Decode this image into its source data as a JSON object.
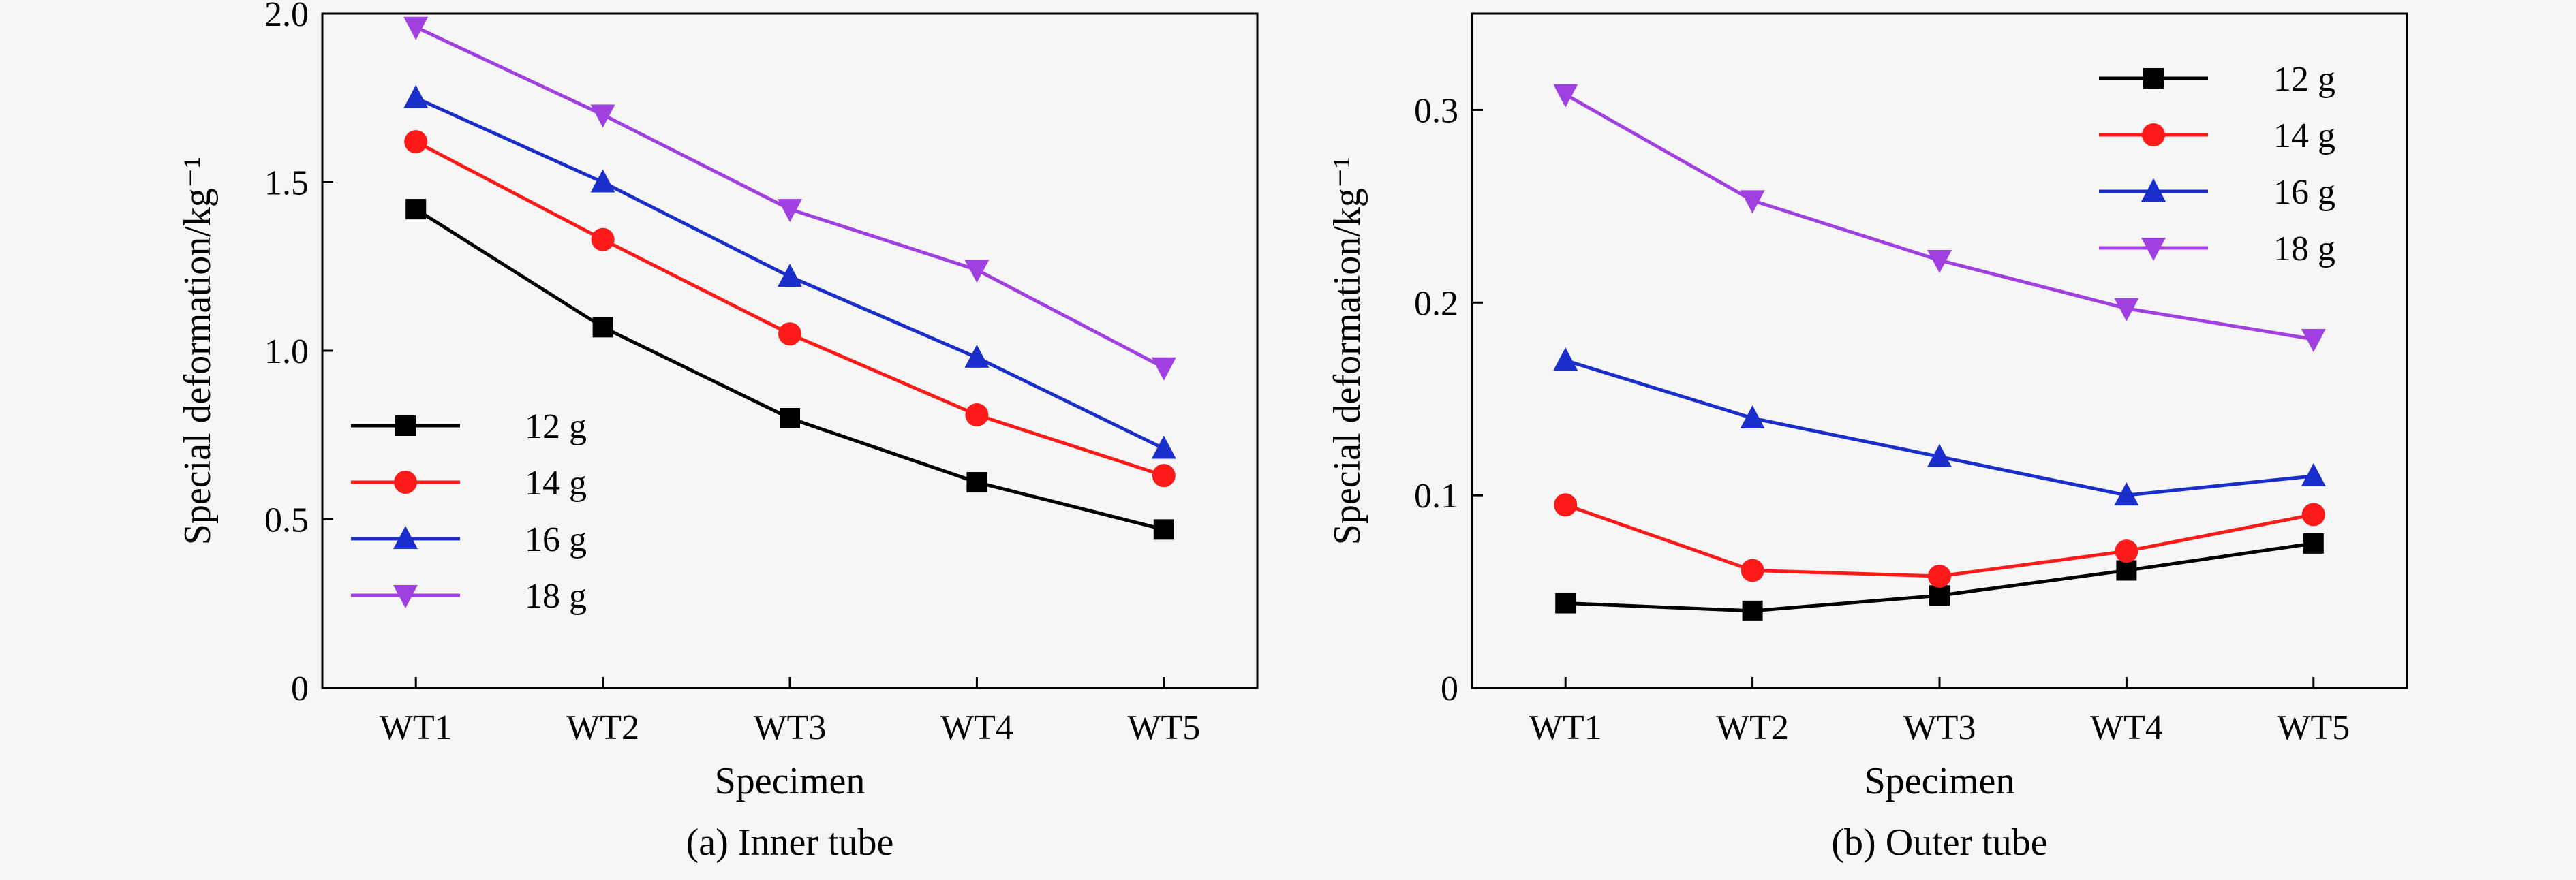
{
  "chart_data": [
    {
      "type": "line",
      "caption": "(a) Inner tube",
      "xlabel": "Specimen",
      "ylabel": "Special deformation/kg⁻¹",
      "categories": [
        "WT1",
        "WT2",
        "WT3",
        "WT4",
        "WT5"
      ],
      "ylim": [
        0,
        2.0
      ],
      "yticks": [
        0,
        0.5,
        1.0,
        1.5,
        2.0
      ],
      "ytick_labels": [
        "0",
        "0.5",
        "1.0",
        "1.5",
        "2.0"
      ],
      "legend_position": "lower-left",
      "grid": false,
      "series": [
        {
          "name": "12 g",
          "color": "#000000",
          "marker": "square",
          "values": [
            1.42,
            1.07,
            0.8,
            0.61,
            0.47
          ]
        },
        {
          "name": "14 g",
          "color": "#ff1a1a",
          "marker": "circle",
          "values": [
            1.62,
            1.33,
            1.05,
            0.81,
            0.63
          ]
        },
        {
          "name": "16 g",
          "color": "#1a2ecc",
          "marker": "triangle-up",
          "values": [
            1.75,
            1.5,
            1.22,
            0.98,
            0.71
          ]
        },
        {
          "name": "18 g",
          "color": "#a040e0",
          "marker": "triangle-down",
          "values": [
            1.96,
            1.7,
            1.42,
            1.24,
            0.95
          ]
        }
      ]
    },
    {
      "type": "line",
      "caption": "(b) Outer tube",
      "xlabel": "Specimen",
      "ylabel": "Special deformation/kg⁻¹",
      "categories": [
        "WT1",
        "WT2",
        "WT3",
        "WT4",
        "WT5"
      ],
      "ylim": [
        0,
        0.35
      ],
      "yticks": [
        0,
        0.1,
        0.2,
        0.3
      ],
      "ytick_labels": [
        "0",
        "0.1",
        "0.2",
        "0.3"
      ],
      "legend_position": "top-right",
      "grid": false,
      "series": [
        {
          "name": "12 g",
          "color": "#000000",
          "marker": "square",
          "values": [
            0.044,
            0.04,
            0.048,
            0.061,
            0.075
          ]
        },
        {
          "name": "14 g",
          "color": "#ff1a1a",
          "marker": "circle",
          "values": [
            0.095,
            0.061,
            0.058,
            0.071,
            0.09
          ]
        },
        {
          "name": "16 g",
          "color": "#1a2ecc",
          "marker": "triangle-up",
          "values": [
            0.17,
            0.14,
            0.12,
            0.1,
            0.11
          ]
        },
        {
          "name": "18 g",
          "color": "#a040e0",
          "marker": "triangle-down",
          "values": [
            0.308,
            0.253,
            0.222,
            0.197,
            0.181
          ]
        }
      ]
    }
  ]
}
